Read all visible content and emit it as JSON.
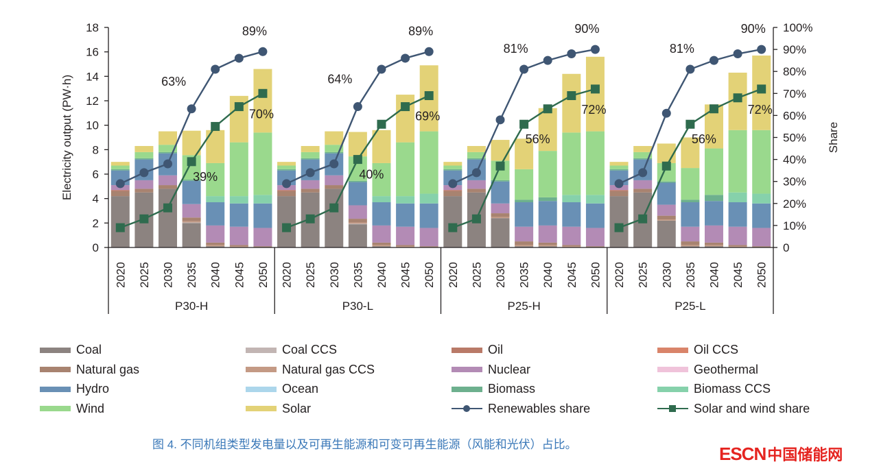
{
  "chart_data": {
    "type": "bar",
    "subtype": "stacked-bar-with-line-overlay",
    "title": "",
    "ylabel": "Electricity output (PW·h)",
    "y2label": "Share",
    "ylim": [
      0,
      18
    ],
    "yticks": [
      0,
      2,
      4,
      6,
      8,
      10,
      12,
      14,
      16,
      18
    ],
    "y2lim": [
      0,
      100
    ],
    "y2ticks": [
      "0",
      "10%",
      "20%",
      "30%",
      "40%",
      "50%",
      "60%",
      "70%",
      "80%",
      "90%",
      "100%"
    ],
    "grid": false,
    "legend_position": "bottom",
    "groups": [
      "P30-H",
      "P30-L",
      "P25-H",
      "P25-L"
    ],
    "categories": [
      "2020",
      "2025",
      "2030",
      "2035",
      "2040",
      "2045",
      "2050"
    ],
    "stack_order": [
      "Coal",
      "Coal CCS",
      "Natural gas CCS",
      "Natural gas",
      "Oil",
      "Oil CCS",
      "Nuclear",
      "Geothermal",
      "Hydro",
      "Ocean",
      "Biomass",
      "Biomass CCS",
      "Wind",
      "Solar"
    ],
    "series_colors": {
      "Coal": "#8c8380",
      "Coal CCS": "#c2b5b3",
      "Oil": "#b97a68",
      "Oil CCS": "#d9846a",
      "Natural gas": "#a88370",
      "Natural gas CCS": "#c49a85",
      "Nuclear": "#b38bb5",
      "Geothermal": "#f0c3da",
      "Hydro": "#6990b5",
      "Ocean": "#acd6eb",
      "Biomass": "#6db08e",
      "Biomass CCS": "#86d1ab",
      "Wind": "#9ad98d",
      "Solar": "#e3d277"
    },
    "bars": {
      "P30-H": {
        "Coal": [
          4.2,
          4.5,
          4.8,
          2.0,
          0.1,
          0.0,
          0.0
        ],
        "Coal CCS": [
          0.0,
          0.0,
          0.0,
          0.05,
          0.0,
          0.0,
          0.0
        ],
        "Natural gas CCS": [
          0.0,
          0.0,
          0.0,
          0.1,
          0.1,
          0.1,
          0.0
        ],
        "Natural gas": [
          0.4,
          0.3,
          0.3,
          0.3,
          0.2,
          0.1,
          0.1
        ],
        "Oil": [
          0.1,
          0.0,
          0.0,
          0.0,
          0.0,
          0.0,
          0.0
        ],
        "Oil CCS": [
          0.0,
          0.0,
          0.0,
          0.0,
          0.0,
          0.0,
          0.0
        ],
        "Nuclear": [
          0.4,
          0.7,
          0.8,
          1.1,
          1.4,
          1.5,
          1.5
        ],
        "Geothermal": [
          0.0,
          0.0,
          0.0,
          0.0,
          0.0,
          0.0,
          0.0
        ],
        "Hydro": [
          1.2,
          1.7,
          1.8,
          1.9,
          1.9,
          1.9,
          2.0
        ],
        "Ocean": [
          0.0,
          0.0,
          0.0,
          0.0,
          0.0,
          0.0,
          0.0
        ],
        "Biomass": [
          0.1,
          0.1,
          0.1,
          0.1,
          0.0,
          0.0,
          0.0
        ],
        "Biomass CCS": [
          0.0,
          0.0,
          0.0,
          0.0,
          0.5,
          0.6,
          0.7
        ],
        "Wind": [
          0.3,
          0.5,
          0.6,
          2.0,
          2.7,
          4.4,
          5.1
        ],
        "Solar": [
          0.3,
          0.5,
          1.1,
          2.0,
          2.7,
          3.8,
          5.2
        ]
      },
      "P30-L": {
        "Coal": [
          4.2,
          4.5,
          4.8,
          1.9,
          0.1,
          0.0,
          0.0
        ],
        "Coal CCS": [
          0.0,
          0.0,
          0.0,
          0.05,
          0.0,
          0.0,
          0.0
        ],
        "Natural gas CCS": [
          0.0,
          0.0,
          0.0,
          0.1,
          0.1,
          0.1,
          0.0
        ],
        "Natural gas": [
          0.4,
          0.3,
          0.3,
          0.3,
          0.2,
          0.1,
          0.1
        ],
        "Oil": [
          0.1,
          0.0,
          0.0,
          0.0,
          0.0,
          0.0,
          0.0
        ],
        "Oil CCS": [
          0.0,
          0.0,
          0.0,
          0.0,
          0.0,
          0.0,
          0.0
        ],
        "Nuclear": [
          0.4,
          0.7,
          0.8,
          1.1,
          1.4,
          1.5,
          1.5
        ],
        "Geothermal": [
          0.0,
          0.0,
          0.0,
          0.0,
          0.0,
          0.0,
          0.0
        ],
        "Hydro": [
          1.2,
          1.7,
          1.8,
          1.9,
          1.9,
          1.9,
          2.0
        ],
        "Ocean": [
          0.0,
          0.0,
          0.0,
          0.0,
          0.0,
          0.0,
          0.0
        ],
        "Biomass": [
          0.1,
          0.1,
          0.1,
          0.1,
          0.0,
          0.0,
          0.0
        ],
        "Biomass CCS": [
          0.0,
          0.0,
          0.0,
          0.0,
          0.5,
          0.6,
          0.8
        ],
        "Wind": [
          0.3,
          0.5,
          0.6,
          2.0,
          2.7,
          4.4,
          5.1
        ],
        "Solar": [
          0.3,
          0.5,
          1.1,
          2.0,
          2.7,
          3.9,
          5.4
        ]
      },
      "P25-H": {
        "Coal": [
          4.2,
          4.5,
          2.4,
          0.1,
          0.1,
          0.0,
          0.0
        ],
        "Coal CCS": [
          0.0,
          0.0,
          0.0,
          0.0,
          0.0,
          0.0,
          0.0
        ],
        "Natural gas CCS": [
          0.0,
          0.0,
          0.1,
          0.1,
          0.1,
          0.1,
          0.0
        ],
        "Natural gas": [
          0.4,
          0.3,
          0.3,
          0.3,
          0.2,
          0.1,
          0.1
        ],
        "Oil": [
          0.1,
          0.0,
          0.0,
          0.0,
          0.0,
          0.0,
          0.0
        ],
        "Oil CCS": [
          0.0,
          0.0,
          0.0,
          0.0,
          0.0,
          0.0,
          0.0
        ],
        "Nuclear": [
          0.4,
          0.7,
          0.8,
          1.2,
          1.4,
          1.5,
          1.5
        ],
        "Geothermal": [
          0.0,
          0.0,
          0.0,
          0.0,
          0.0,
          0.0,
          0.0
        ],
        "Hydro": [
          1.2,
          1.7,
          1.8,
          2.0,
          2.0,
          2.0,
          2.0
        ],
        "Ocean": [
          0.0,
          0.0,
          0.0,
          0.0,
          0.0,
          0.0,
          0.0
        ],
        "Biomass": [
          0.1,
          0.1,
          0.1,
          0.2,
          0.3,
          0.0,
          0.0
        ],
        "Biomass CCS": [
          0.0,
          0.0,
          0.0,
          0.0,
          0.0,
          0.6,
          0.7
        ],
        "Wind": [
          0.3,
          0.5,
          1.6,
          2.5,
          3.8,
          5.1,
          5.2
        ],
        "Solar": [
          0.3,
          0.5,
          1.7,
          2.5,
          3.5,
          4.8,
          6.1
        ]
      },
      "P25-L": {
        "Coal": [
          4.2,
          4.5,
          2.2,
          0.1,
          0.1,
          0.0,
          0.0
        ],
        "Coal CCS": [
          0.0,
          0.0,
          0.0,
          0.0,
          0.0,
          0.0,
          0.0
        ],
        "Natural gas CCS": [
          0.0,
          0.0,
          0.1,
          0.1,
          0.1,
          0.1,
          0.0
        ],
        "Natural gas": [
          0.4,
          0.3,
          0.3,
          0.3,
          0.2,
          0.1,
          0.1
        ],
        "Oil": [
          0.1,
          0.0,
          0.0,
          0.0,
          0.0,
          0.0,
          0.0
        ],
        "Oil CCS": [
          0.0,
          0.0,
          0.0,
          0.0,
          0.0,
          0.0,
          0.0
        ],
        "Nuclear": [
          0.4,
          0.7,
          0.9,
          1.2,
          1.4,
          1.5,
          1.5
        ],
        "Geothermal": [
          0.0,
          0.0,
          0.0,
          0.0,
          0.0,
          0.0,
          0.0
        ],
        "Hydro": [
          1.2,
          1.7,
          1.8,
          2.0,
          2.0,
          2.0,
          2.0
        ],
        "Ocean": [
          0.0,
          0.0,
          0.0,
          0.0,
          0.0,
          0.0,
          0.0
        ],
        "Biomass": [
          0.1,
          0.1,
          0.1,
          0.2,
          0.5,
          0.0,
          0.0
        ],
        "Biomass CCS": [
          0.0,
          0.0,
          0.0,
          0.0,
          0.0,
          0.8,
          0.8
        ],
        "Wind": [
          0.3,
          0.5,
          1.5,
          2.6,
          3.8,
          5.1,
          5.2
        ],
        "Solar": [
          0.3,
          0.5,
          1.6,
          2.5,
          3.6,
          4.7,
          6.1
        ]
      }
    },
    "lines": [
      {
        "name": "Renewables share",
        "color": "#3f5673",
        "marker": "circle",
        "values": {
          "P30-H": [
            29,
            34,
            38,
            63,
            81,
            86,
            89
          ],
          "P30-L": [
            29,
            34,
            38,
            64,
            81,
            86,
            89
          ],
          "P25-H": [
            29,
            34,
            58,
            81,
            85,
            88,
            90
          ],
          "P25-L": [
            29,
            34,
            61,
            81,
            85,
            88,
            90
          ]
        }
      },
      {
        "name": "Solar and wind share",
        "color": "#2f6b4e",
        "marker": "square",
        "values": {
          "P30-H": [
            9,
            13,
            18,
            39,
            55,
            64,
            70
          ],
          "P30-L": [
            9,
            13,
            18,
            40,
            56,
            64,
            69
          ],
          "P25-H": [
            9,
            13,
            37,
            56,
            63,
            69,
            72
          ],
          "P25-L": [
            9,
            13,
            37,
            56,
            63,
            68,
            72
          ]
        }
      }
    ],
    "annotations": [
      {
        "group": "P30-H",
        "year": "2035",
        "series": "Renewables share",
        "text": "63%",
        "placement": "upper-left"
      },
      {
        "group": "P30-H",
        "year": "2035",
        "series": "Solar and wind share",
        "text": "39%",
        "placement": "lower-right"
      },
      {
        "group": "P30-H",
        "year": "2050",
        "series": "Renewables share",
        "text": "89%",
        "placement": "above"
      },
      {
        "group": "P30-H",
        "year": "2050",
        "series": "Solar and wind share",
        "text": "70%",
        "placement": "below"
      },
      {
        "group": "P30-L",
        "year": "2035",
        "series": "Renewables share",
        "text": "64%",
        "placement": "upper-left"
      },
      {
        "group": "P30-L",
        "year": "2035",
        "series": "Solar and wind share",
        "text": "40%",
        "placement": "lower-right"
      },
      {
        "group": "P30-L",
        "year": "2050",
        "series": "Renewables share",
        "text": "89%",
        "placement": "above"
      },
      {
        "group": "P30-L",
        "year": "2050",
        "series": "Solar and wind share",
        "text": "69%",
        "placement": "below"
      },
      {
        "group": "P25-H",
        "year": "2035",
        "series": "Renewables share",
        "text": "81%",
        "placement": "above"
      },
      {
        "group": "P25-H",
        "year": "2035",
        "series": "Solar and wind share",
        "text": "56%",
        "placement": "lower-right"
      },
      {
        "group": "P25-H",
        "year": "2050",
        "series": "Renewables share",
        "text": "90%",
        "placement": "above"
      },
      {
        "group": "P25-H",
        "year": "2050",
        "series": "Solar and wind share",
        "text": "72%",
        "placement": "below"
      },
      {
        "group": "P25-L",
        "year": "2035",
        "series": "Renewables share",
        "text": "81%",
        "placement": "above"
      },
      {
        "group": "P25-L",
        "year": "2035",
        "series": "Solar and wind share",
        "text": "56%",
        "placement": "lower-right"
      },
      {
        "group": "P25-L",
        "year": "2050",
        "series": "Renewables share",
        "text": "90%",
        "placement": "above"
      },
      {
        "group": "P25-L",
        "year": "2050",
        "series": "Solar and wind share",
        "text": "72%",
        "placement": "below"
      }
    ],
    "legend": [
      {
        "label": "Coal",
        "kind": "bar"
      },
      {
        "label": "Coal CCS",
        "kind": "bar"
      },
      {
        "label": "Oil",
        "kind": "bar"
      },
      {
        "label": "Oil CCS",
        "kind": "bar"
      },
      {
        "label": "Natural gas",
        "kind": "bar"
      },
      {
        "label": "Natural gas CCS",
        "kind": "bar"
      },
      {
        "label": "Nuclear",
        "kind": "bar"
      },
      {
        "label": "Geothermal",
        "kind": "bar"
      },
      {
        "label": "Hydro",
        "kind": "bar"
      },
      {
        "label": "Ocean",
        "kind": "bar"
      },
      {
        "label": "Biomass",
        "kind": "bar"
      },
      {
        "label": "Biomass CCS",
        "kind": "bar"
      },
      {
        "label": "Wind",
        "kind": "bar"
      },
      {
        "label": "Solar",
        "kind": "bar"
      },
      {
        "label": "Renewables share",
        "kind": "line-circle"
      },
      {
        "label": "Solar and wind share",
        "kind": "line-square"
      }
    ]
  },
  "caption": "图 4. 不同机组类型发电量以及可再生能源和可变可再生能源（风能和光伏）占比。",
  "watermark": {
    "latin": "ESCN",
    "cjk": "中国储能网"
  }
}
